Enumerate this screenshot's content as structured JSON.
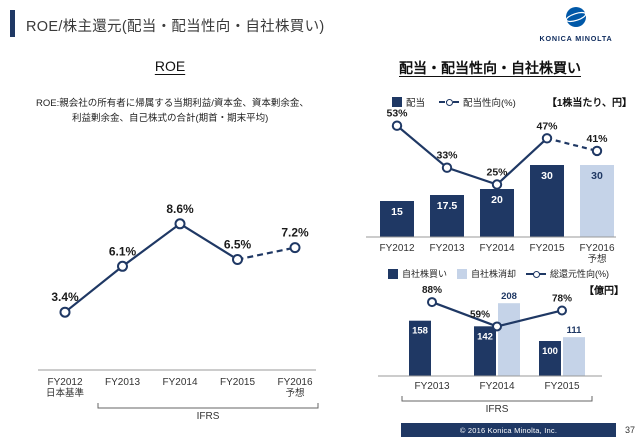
{
  "header": {
    "title": "ROE/株主還元(配当・配当性向・自社株買い)",
    "logo_text": "KONICA MINOLTA"
  },
  "left_section": {
    "heading": "ROE",
    "note_line1": "ROE:親会社の所有者に帰属する当期利益/資本金、資本剰余金、",
    "note_line2": "利益剰余金、自己株式の合計(期首・期末平均)"
  },
  "right_section": {
    "heading": "配当・配当性向・自社株買い",
    "dividend_legend": [
      "配当",
      "配当性向(%)"
    ],
    "dividend_unit": "【1株当たり、円】",
    "buyback_legend": [
      "自社株買い",
      "自社株消却",
      "総還元性向(%)"
    ],
    "buyback_unit": "【億円】"
  },
  "footer": {
    "copyright": "© 2016 Konica Minolta, Inc.",
    "page_number": "37"
  },
  "chart_data": [
    {
      "id": "roe",
      "type": "line",
      "title": "ROE",
      "categories": [
        "FY2012",
        "FY2013",
        "FY2014",
        "FY2015",
        "FY2016\n予想"
      ],
      "values": [
        3.4,
        6.1,
        8.6,
        6.5,
        7.2
      ],
      "labels": [
        "3.4%",
        "6.1%",
        "8.6%",
        "6.5%",
        "7.2%"
      ],
      "ylim": [
        0,
        10
      ],
      "forecast_last_segment_dashed": true,
      "x_note_first": "日本基準",
      "x_bracket": {
        "from": 1,
        "to": 4,
        "label": "IFRS"
      }
    },
    {
      "id": "dividend",
      "type": "bar",
      "categories": [
        "FY2012",
        "FY2013",
        "FY2014",
        "FY2015",
        "FY2016\n予想"
      ],
      "series": [
        {
          "name": "配当",
          "type": "bar",
          "values": [
            15,
            17.5,
            20,
            30,
            30
          ],
          "labels": [
            "15",
            "17.5",
            "20",
            "30",
            "30"
          ],
          "forecast_last_bar_light": true
        },
        {
          "name": "配当性向(%)",
          "type": "line",
          "values": [
            53,
            33,
            25,
            47,
            41
          ],
          "labels": [
            "53%",
            "33%",
            "25%",
            "47%",
            "41%"
          ]
        }
      ],
      "unit_note": "【1株当たり、円】",
      "forecast_last_segment_dashed": true
    },
    {
      "id": "buyback",
      "type": "bar",
      "categories": [
        "FY2013",
        "FY2014",
        "FY2015"
      ],
      "series": [
        {
          "name": "自社株買い",
          "type": "bar",
          "values": [
            158,
            142,
            100
          ],
          "labels": [
            "158",
            "142",
            "100"
          ]
        },
        {
          "name": "自社株消却",
          "type": "bar",
          "values": [
            null,
            208,
            111
          ],
          "labels": [
            "",
            "208",
            "111"
          ]
        },
        {
          "name": "総還元性向(%)",
          "type": "line",
          "values": [
            88,
            59,
            78
          ],
          "labels": [
            "88%",
            "59%",
            "78%"
          ]
        }
      ],
      "unit_note": "【億円】",
      "x_bracket": {
        "from": 0,
        "to": 2,
        "label": "IFRS"
      }
    }
  ]
}
